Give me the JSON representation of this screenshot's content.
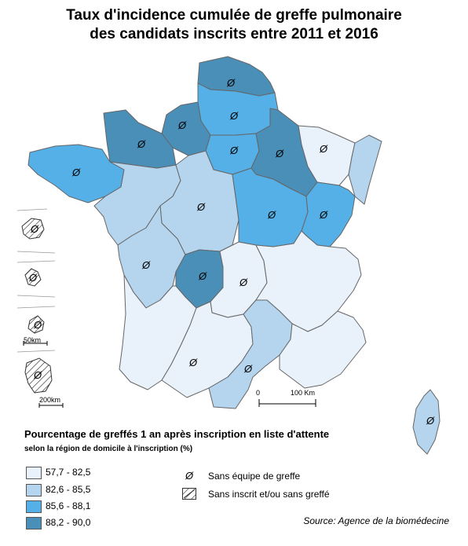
{
  "title": {
    "line1": "Taux d'incidence cumulée de greffe pulmonaire",
    "line2": "des candidats inscrits entre 2011 et 2016"
  },
  "colors": {
    "class1": "#e9f1fb",
    "class2": "#b5d5ee",
    "class3": "#54b0e6",
    "class4": "#4a8fb8",
    "border": "#666666"
  },
  "legend": {
    "title": "Pourcentage de greffés 1 an après inscription en liste d'attente",
    "subtitle": "selon la région de domicile à l'inscription (%)",
    "classes": [
      {
        "label": "57,7 - 82,5",
        "color": "#e9f1fb"
      },
      {
        "label": "82,6 - 85,5",
        "color": "#b5d5ee"
      },
      {
        "label": "85,6 - 88,1",
        "color": "#54b0e6"
      },
      {
        "label": "88,2 - 90,0",
        "color": "#4a8fb8"
      }
    ],
    "symbols": [
      {
        "icon": "no-team-icon",
        "label": "Sans équipe de greffe"
      },
      {
        "icon": "hatch-icon",
        "label": "Sans inscrit et/ou sans greffé"
      }
    ]
  },
  "scale": {
    "zero": "0",
    "main": "100 Km",
    "inset_small": "50km",
    "inset_large": "200km"
  },
  "no_team_symbol": "Ø",
  "source": "Source: Agence de la biomédecine"
}
